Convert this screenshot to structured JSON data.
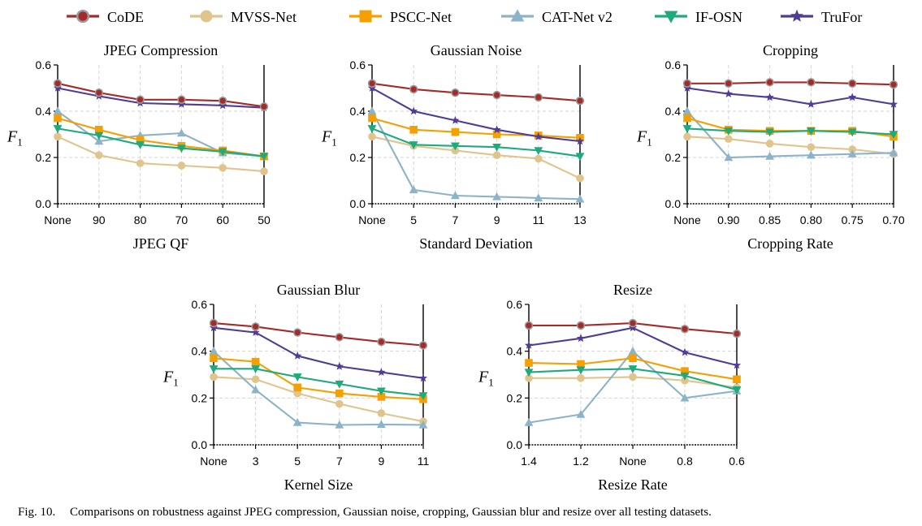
{
  "legend": [
    {
      "name": "CoDE",
      "color": "#a52a2a",
      "marker": "circle-dot"
    },
    {
      "name": "MVSS-Net",
      "color": "#e0c48c",
      "marker": "circle"
    },
    {
      "name": "PSCC-Net",
      "color": "#f5a000",
      "marker": "square"
    },
    {
      "name": "CAT-Net v2",
      "color": "#8cb4c8",
      "marker": "triangle-up"
    },
    {
      "name": "IF-OSN",
      "color": "#1eaa7d",
      "marker": "triangle-down"
    },
    {
      "name": "TruFor",
      "color": "#503c96",
      "marker": "star"
    }
  ],
  "caption": {
    "label": "Fig. 10.",
    "text": "Comparisons on robustness against JPEG compression, Gaussian noise, cropping, Gaussian blur and resize over all testing datasets."
  },
  "chart_data": [
    {
      "type": "line",
      "title": "JPEG Compression",
      "xlabel": "JPEG QF",
      "ylabel": "F1",
      "ylim": [
        0,
        0.6
      ],
      "yticks": [
        "0.0",
        "0.2",
        "0.4",
        "0.6"
      ],
      "categories": [
        "None",
        "90",
        "80",
        "70",
        "60",
        "50"
      ],
      "series": [
        {
          "name": "CoDE",
          "values": [
            0.52,
            0.48,
            0.45,
            0.45,
            0.445,
            0.42
          ]
        },
        {
          "name": "MVSS-Net",
          "values": [
            0.29,
            0.21,
            0.175,
            0.165,
            0.155,
            0.14
          ]
        },
        {
          "name": "PSCC-Net",
          "values": [
            0.37,
            0.32,
            0.275,
            0.25,
            0.23,
            0.205
          ]
        },
        {
          "name": "CAT-Net v2",
          "values": [
            0.4,
            0.27,
            0.295,
            0.305,
            0.22,
            0.205
          ]
        },
        {
          "name": "IF-OSN",
          "values": [
            0.325,
            0.295,
            0.255,
            0.24,
            0.225,
            0.205
          ]
        },
        {
          "name": "TruFor",
          "values": [
            0.5,
            0.465,
            0.435,
            0.43,
            0.425,
            0.415
          ]
        }
      ]
    },
    {
      "type": "line",
      "title": "Gaussian Noise",
      "xlabel": "Standard Deviation",
      "ylabel": "F1",
      "ylim": [
        0,
        0.6
      ],
      "yticks": [
        "0.0",
        "0.2",
        "0.4",
        "0.6"
      ],
      "categories": [
        "None",
        "5",
        "7",
        "9",
        "11",
        "13"
      ],
      "series": [
        {
          "name": "CoDE",
          "values": [
            0.52,
            0.495,
            0.48,
            0.47,
            0.46,
            0.445
          ]
        },
        {
          "name": "MVSS-Net",
          "values": [
            0.29,
            0.25,
            0.23,
            0.21,
            0.195,
            0.11
          ]
        },
        {
          "name": "PSCC-Net",
          "values": [
            0.37,
            0.32,
            0.31,
            0.3,
            0.295,
            0.285
          ]
        },
        {
          "name": "CAT-Net v2",
          "values": [
            0.4,
            0.06,
            0.035,
            0.03,
            0.025,
            0.02
          ]
        },
        {
          "name": "IF-OSN",
          "values": [
            0.325,
            0.255,
            0.25,
            0.245,
            0.23,
            0.205
          ]
        },
        {
          "name": "TruFor",
          "values": [
            0.5,
            0.4,
            0.36,
            0.32,
            0.29,
            0.27
          ]
        }
      ]
    },
    {
      "type": "line",
      "title": "Cropping",
      "xlabel": "Cropping Rate",
      "ylabel": "F1",
      "ylim": [
        0,
        0.6
      ],
      "yticks": [
        "0.0",
        "0.2",
        "0.4",
        "0.6"
      ],
      "categories": [
        "None",
        "0.90",
        "0.85",
        "0.80",
        "0.75",
        "0.70"
      ],
      "series": [
        {
          "name": "CoDE",
          "values": [
            0.52,
            0.52,
            0.525,
            0.525,
            0.52,
            0.515
          ]
        },
        {
          "name": "MVSS-Net",
          "values": [
            0.29,
            0.28,
            0.26,
            0.245,
            0.235,
            0.215
          ]
        },
        {
          "name": "PSCC-Net",
          "values": [
            0.37,
            0.32,
            0.315,
            0.315,
            0.315,
            0.29
          ]
        },
        {
          "name": "CAT-Net v2",
          "values": [
            0.4,
            0.2,
            0.205,
            0.21,
            0.215,
            0.22
          ]
        },
        {
          "name": "IF-OSN",
          "values": [
            0.325,
            0.315,
            0.31,
            0.315,
            0.31,
            0.3
          ]
        },
        {
          "name": "TruFor",
          "values": [
            0.5,
            0.475,
            0.46,
            0.43,
            0.46,
            0.43
          ]
        }
      ]
    },
    {
      "type": "line",
      "title": "Gaussian Blur",
      "xlabel": "Kernel Size",
      "ylabel": "F1",
      "ylim": [
        0,
        0.6
      ],
      "yticks": [
        "0.0",
        "0.2",
        "0.4",
        "0.6"
      ],
      "categories": [
        "None",
        "3",
        "5",
        "7",
        "9",
        "11"
      ],
      "series": [
        {
          "name": "CoDE",
          "values": [
            0.52,
            0.505,
            0.48,
            0.46,
            0.44,
            0.425
          ]
        },
        {
          "name": "MVSS-Net",
          "values": [
            0.29,
            0.28,
            0.22,
            0.175,
            0.135,
            0.1
          ]
        },
        {
          "name": "PSCC-Net",
          "values": [
            0.37,
            0.355,
            0.245,
            0.22,
            0.205,
            0.195
          ]
        },
        {
          "name": "CAT-Net v2",
          "values": [
            0.4,
            0.235,
            0.095,
            0.085,
            0.087,
            0.085
          ]
        },
        {
          "name": "IF-OSN",
          "values": [
            0.325,
            0.325,
            0.29,
            0.26,
            0.23,
            0.21
          ]
        },
        {
          "name": "TruFor",
          "values": [
            0.5,
            0.48,
            0.38,
            0.335,
            0.31,
            0.285
          ]
        }
      ]
    },
    {
      "type": "line",
      "title": "Resize",
      "xlabel": "Resize Rate",
      "ylabel": "F1",
      "ylim": [
        0,
        0.6
      ],
      "yticks": [
        "0.0",
        "0.2",
        "0.4",
        "0.6"
      ],
      "categories": [
        "1.4",
        "1.2",
        "None",
        "0.8",
        "0.6"
      ],
      "series": [
        {
          "name": "CoDE",
          "values": [
            0.51,
            0.51,
            0.52,
            0.495,
            0.475
          ]
        },
        {
          "name": "MVSS-Net",
          "values": [
            0.285,
            0.285,
            0.29,
            0.275,
            0.245
          ]
        },
        {
          "name": "PSCC-Net",
          "values": [
            0.35,
            0.345,
            0.37,
            0.315,
            0.28
          ]
        },
        {
          "name": "CAT-Net v2",
          "values": [
            0.095,
            0.13,
            0.4,
            0.2,
            0.23
          ]
        },
        {
          "name": "IF-OSN",
          "values": [
            0.31,
            0.32,
            0.325,
            0.295,
            0.235
          ]
        },
        {
          "name": "TruFor",
          "values": [
            0.425,
            0.455,
            0.5,
            0.395,
            0.34
          ]
        }
      ]
    }
  ]
}
